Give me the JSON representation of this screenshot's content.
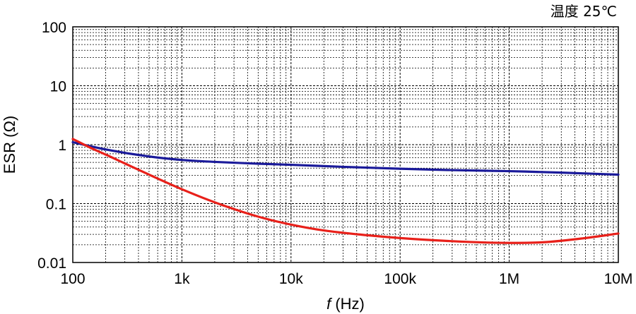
{
  "chart_data": {
    "type": "line",
    "title": "",
    "annotation": "温度 25℃",
    "xlabel_italic": "f",
    "xlabel_rest": " (Hz)",
    "ylabel": "ESR (Ω)",
    "xscale": "log",
    "yscale": "log",
    "xlim": [
      100,
      10000000
    ],
    "ylim": [
      0.01,
      100
    ],
    "grid": true,
    "x_ticks": [
      {
        "value": 100,
        "label": "100"
      },
      {
        "value": 1000,
        "label": "1k"
      },
      {
        "value": 10000,
        "label": "10k"
      },
      {
        "value": 100000,
        "label": "100k"
      },
      {
        "value": 1000000,
        "label": "1M"
      },
      {
        "value": 10000000,
        "label": "10M"
      }
    ],
    "y_ticks": [
      {
        "value": 0.01,
        "label": "0.01"
      },
      {
        "value": 0.1,
        "label": "0.1"
      },
      {
        "value": 1,
        "label": "1"
      },
      {
        "value": 10,
        "label": "10"
      },
      {
        "value": 100,
        "label": "100"
      }
    ],
    "series": [
      {
        "name": "blue-curve",
        "color": "#1a1a9a",
        "x": [
          100,
          200,
          500,
          1000,
          2000,
          5000,
          10000,
          30000,
          100000,
          300000,
          1000000,
          3000000,
          10000000
        ],
        "y": [
          1.1,
          0.83,
          0.63,
          0.55,
          0.51,
          0.475,
          0.455,
          0.42,
          0.39,
          0.37,
          0.355,
          0.335,
          0.31
        ]
      },
      {
        "name": "red-curve",
        "color": "#e8201a",
        "x": [
          100,
          150,
          200,
          300,
          500,
          1000,
          2000,
          5000,
          10000,
          20000,
          50000,
          100000,
          300000,
          1000000,
          2000000,
          5000000,
          10000000
        ],
        "y": [
          1.25,
          0.86,
          0.68,
          0.48,
          0.31,
          0.175,
          0.105,
          0.06,
          0.044,
          0.035,
          0.029,
          0.026,
          0.023,
          0.0215,
          0.022,
          0.026,
          0.031
        ]
      }
    ]
  }
}
